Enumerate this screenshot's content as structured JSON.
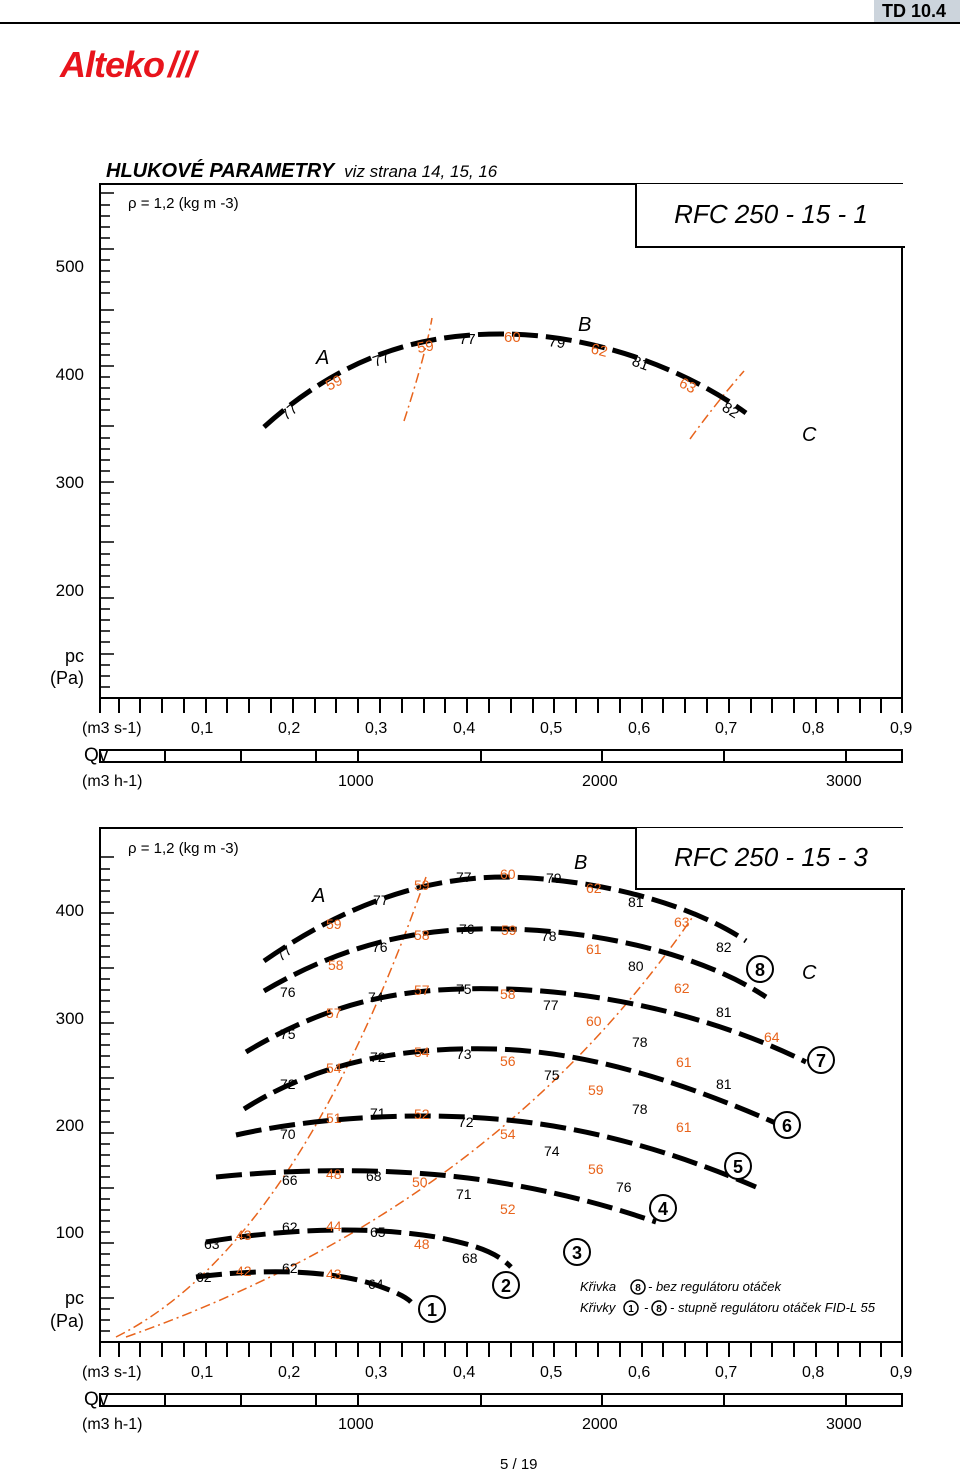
{
  "header": {
    "doc_id": "TD 10.4",
    "logo_text": "Alteko",
    "section_title": "HLUKOVÉ  PARAMETRY",
    "section_ref": "viz strana 14, 15, 16"
  },
  "chart1": {
    "title": "RFC 250 - 15 - 1",
    "density": "ρ = 1,2 (kg m -3)",
    "y_ticks": [
      "500",
      "400",
      "300",
      "200"
    ],
    "y_unit_1": "pc",
    "y_unit_2": "(Pa)",
    "x_unit_s": "(m3 s-1)",
    "x_ticks_s": [
      "0,1",
      "0,2",
      "0,3",
      "0,4",
      "0,5",
      "0,6",
      "0,7",
      "0,8",
      "0,9"
    ],
    "x_name": "Qv",
    "x_unit_h": "(m3 h-1)",
    "x_ticks_h": [
      "1000",
      "2000",
      "3000"
    ],
    "zone_labels": [
      "A",
      "B",
      "C"
    ],
    "black_labels": [
      "77",
      "77",
      "77",
      "79",
      "81",
      "82"
    ],
    "orange_labels": [
      "59",
      "59",
      "60",
      "62",
      "63"
    ],
    "colors": {
      "curve": "#000000",
      "orange": "#e8641c"
    }
  },
  "chart2": {
    "title": "RFC 250 - 15 - 3",
    "density": "ρ = 1,2 (kg m -3)",
    "y_ticks": [
      "400",
      "300",
      "200",
      "100"
    ],
    "y_unit_1": "pc",
    "y_unit_2": "(Pa)",
    "x_unit_s": "(m3 s-1)",
    "x_ticks_s": [
      "0,1",
      "0,2",
      "0,3",
      "0,4",
      "0,5",
      "0,6",
      "0,7",
      "0,8",
      "0,9"
    ],
    "x_name": "Qv",
    "x_unit_h": "(m3 h-1)",
    "x_ticks_h": [
      "1000",
      "2000",
      "3000"
    ],
    "zone_labels": [
      "A",
      "B",
      "C"
    ],
    "curve_numbers": [
      "1",
      "2",
      "3",
      "4",
      "5",
      "6",
      "7",
      "8"
    ],
    "legend_line1_a": "Křivka",
    "legend_line1_num": "8",
    "legend_line1_b": "- bez regulátoru otáček",
    "legend_line2_a": "Křivky",
    "legend_line2_n1": "1",
    "legend_line2_dash": "-",
    "legend_line2_n2": "8",
    "legend_line2_b": "- stupně regulátoru otáček FID-L 55",
    "curve_labels": [
      {
        "black": [
          "77",
          "77",
          "77",
          "79",
          "81",
          "82"
        ],
        "orange": [
          "59",
          "59",
          "60",
          "62",
          "63"
        ]
      },
      {
        "black": [
          "76",
          "76",
          "76",
          "78",
          "80"
        ],
        "orange": [
          "58",
          "58",
          "59",
          "61",
          "62"
        ]
      },
      {
        "black": [
          "75",
          "74",
          "75",
          "77",
          "81"
        ],
        "orange": [
          "57",
          "57",
          "58",
          "60",
          "64"
        ]
      },
      {
        "black": [
          "72",
          "72",
          "73",
          "75",
          "78",
          "81"
        ],
        "orange": [
          "54",
          "54",
          "56",
          "59",
          "61"
        ]
      },
      {
        "black": [
          "70",
          "71",
          "72",
          "74",
          "78"
        ],
        "orange": [
          "51",
          "52",
          "54",
          "56",
          "61"
        ]
      },
      {
        "black": [
          "66",
          "68",
          "71",
          "76"
        ],
        "orange": [
          "48",
          "50",
          "52"
        ]
      },
      {
        "black": [
          "63",
          "62",
          "65",
          "68"
        ],
        "orange": [
          "43",
          "44",
          "48"
        ]
      },
      {
        "black": [
          "62",
          "62",
          "64"
        ],
        "orange": [
          "42",
          "43"
        ]
      }
    ],
    "colors": {
      "curve": "#000000",
      "orange": "#e8641c"
    }
  },
  "footer": {
    "page": "5  /  19"
  }
}
